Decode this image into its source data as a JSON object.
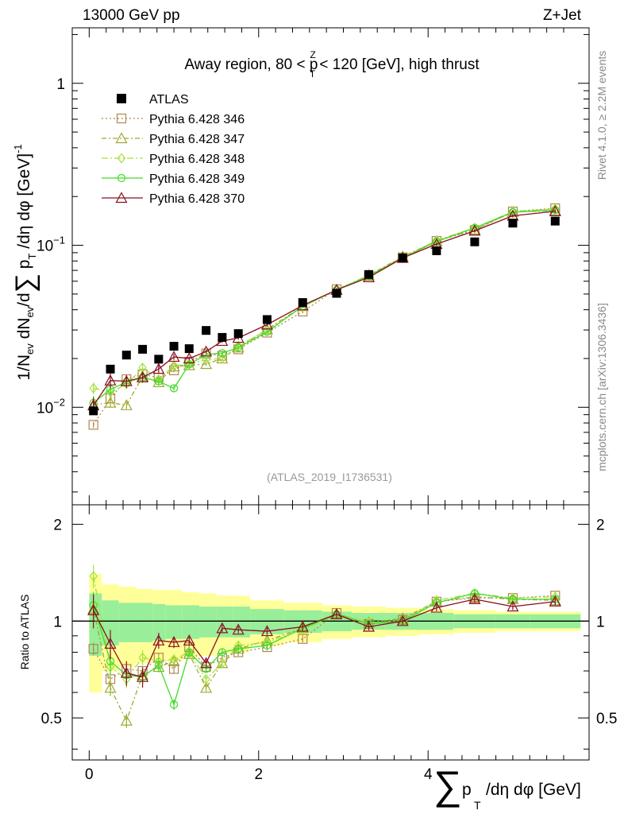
{
  "header": {
    "left": "13000 GeV pp",
    "right": "Z+Jet"
  },
  "side": {
    "top": "Rivet 4.1.0, ≥ 2.2M events",
    "bottom": "mcplots.cern.ch [arXiv:1306.3436]"
  },
  "chart_data": {
    "type": "scatter",
    "title_parts": {
      "pre": "Away region, 80 < p",
      "sup": "Z",
      "sub": "T",
      "post": " < 120 [GeV], high thrust"
    },
    "watermark": "(ATLAS_2019_I1736531)",
    "ylabel_main": "1/N_ev dN_ev/d∑ p_T /dη dφ [GeV]^-1",
    "ylabel_ratio": "Ratio to ATLAS",
    "xlabel": "∑ p_T /dη dφ [GeV]",
    "xlim": [
      -0.2,
      5.9
    ],
    "ylim_main": [
      0.0025,
      2.2
    ],
    "ylim_ratio": [
      0.37,
      2.3
    ],
    "x_ticks": [
      {
        "v": 0,
        "label": "0"
      },
      {
        "v": 2,
        "label": "2"
      },
      {
        "v": 4,
        "label": "4"
      }
    ],
    "y_ticks_main": [
      {
        "v": 0.01,
        "base": "10",
        "exp": "−2"
      },
      {
        "v": 0.1,
        "base": "10",
        "exp": "−1"
      },
      {
        "v": 1,
        "base": "1",
        "exp": ""
      }
    ],
    "y_ticks_ratio": [
      {
        "v": 0.5,
        "label": "0.5"
      },
      {
        "v": 1,
        "label": "1"
      },
      {
        "v": 2,
        "label": "2"
      }
    ],
    "x": [
      0.05,
      0.25,
      0.44,
      0.63,
      0.82,
      1.0,
      1.18,
      1.38,
      1.57,
      1.76,
      2.1,
      2.52,
      2.92,
      3.3,
      3.7,
      4.1,
      4.55,
      5.0,
      5.5
    ],
    "band_x": [
      0.0,
      0.15,
      0.35,
      0.55,
      0.75,
      0.9,
      1.1,
      1.3,
      1.5,
      1.7,
      1.9,
      2.3,
      2.75,
      3.1,
      3.5,
      3.9,
      4.3,
      4.8,
      5.2,
      5.8
    ],
    "band_green": [
      0.22,
      0.16,
      0.14,
      0.14,
      0.13,
      0.12,
      0.12,
      0.11,
      0.11,
      0.11,
      0.09,
      0.08,
      0.07,
      0.06,
      0.06,
      0.06,
      0.05,
      0.05,
      0.05
    ],
    "band_yellow": [
      0.4,
      0.3,
      0.28,
      0.26,
      0.25,
      0.25,
      0.23,
      0.22,
      0.2,
      0.2,
      0.16,
      0.14,
      0.12,
      0.11,
      0.1,
      0.09,
      0.08,
      0.07,
      0.07
    ],
    "data": {
      "name": "ATLAS",
      "values": [
        0.0095,
        0.0172,
        0.021,
        0.0228,
        0.0198,
        0.0238,
        0.023,
        0.0298,
        0.027,
        0.0285,
        0.0348,
        0.0443,
        0.0505,
        0.066,
        0.0835,
        0.0925,
        0.105,
        0.137,
        0.141
      ]
    },
    "series": [
      {
        "name": "Pythia 6.428 346",
        "color": "#b08850",
        "dash": "2,3",
        "marker": "square",
        "ratio": [
          0.82,
          0.66,
          0.71,
          0.7,
          0.77,
          0.71,
          0.83,
          0.72,
          0.77,
          0.8,
          0.83,
          0.88,
          1.06,
          0.98,
          1.01,
          1.15,
          1.18,
          1.18,
          1.2
        ]
      },
      {
        "name": "Pythia 6.428 347",
        "color": "#a0a830",
        "dash": "6,3,2,3",
        "marker": "triangle",
        "ratio": [
          1.09,
          0.62,
          0.49,
          0.68,
          0.72,
          0.75,
          0.79,
          0.62,
          0.74,
          0.82,
          0.87,
          0.95,
          1.05,
          0.99,
          1.02,
          1.15,
          1.19,
          1.17,
          1.16
        ]
      },
      {
        "name": "Pythia 6.428 348",
        "color": "#a8e040",
        "dash": "8,3,2,3",
        "marker": "diamond",
        "ratio": [
          1.38,
          0.72,
          0.66,
          0.77,
          0.75,
          0.76,
          0.8,
          0.66,
          0.74,
          0.84,
          0.86,
          0.94,
          1.05,
          0.99,
          1.0,
          1.16,
          1.22,
          1.18,
          1.19
        ]
      },
      {
        "name": "Pythia 6.428 349",
        "color": "#40dc28",
        "dash": "",
        "marker": "circle",
        "ratio": [
          1.12,
          0.75,
          0.68,
          0.67,
          0.73,
          0.55,
          0.8,
          0.71,
          0.8,
          0.82,
          0.84,
          0.95,
          1.05,
          0.98,
          1.0,
          1.14,
          1.22,
          1.17,
          1.17
        ]
      },
      {
        "name": "Pythia 6.428 370",
        "color": "#8a1020",
        "dash": "",
        "marker": "triangle",
        "ratio": [
          1.08,
          0.85,
          0.69,
          0.67,
          0.87,
          0.86,
          0.87,
          0.74,
          0.95,
          0.94,
          0.93,
          0.96,
          1.05,
          0.96,
          1.0,
          1.1,
          1.17,
          1.11,
          1.15
        ]
      }
    ]
  }
}
